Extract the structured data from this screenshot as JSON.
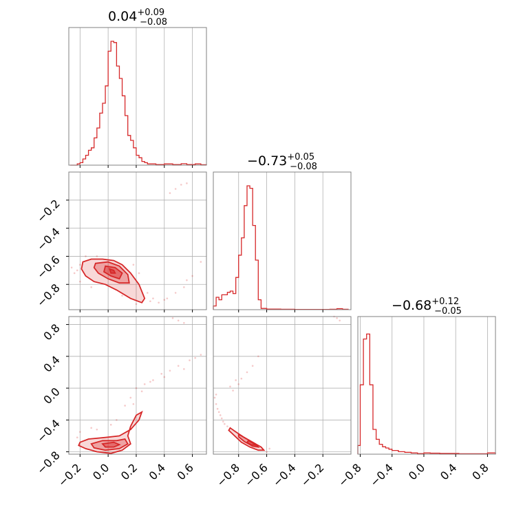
{
  "chart_data": {
    "type": "corner",
    "color": "#d62728",
    "parameters": [
      {
        "title": {
          "median": "0.04",
          "plus": "+0.09",
          "minus": "−0.08"
        },
        "range": [
          -0.28,
          0.7
        ],
        "ticks": [
          -0.2,
          0.0,
          0.2,
          0.4,
          0.6
        ],
        "tick_labels": [
          "−0.2",
          "0.0",
          "0.2",
          "0.4",
          "0.6"
        ],
        "histogram": [
          [
            -0.27,
            0.0
          ],
          [
            -0.22,
            0.01
          ],
          [
            -0.2,
            0.02
          ],
          [
            -0.18,
            0.05
          ],
          [
            -0.16,
            0.08
          ],
          [
            -0.14,
            0.12
          ],
          [
            -0.12,
            0.14
          ],
          [
            -0.1,
            0.22
          ],
          [
            -0.08,
            0.3
          ],
          [
            -0.06,
            0.42
          ],
          [
            -0.04,
            0.5
          ],
          [
            -0.02,
            0.64
          ],
          [
            0.0,
            0.92
          ],
          [
            0.02,
            1.0
          ],
          [
            0.04,
            0.99
          ],
          [
            0.06,
            0.8
          ],
          [
            0.08,
            0.7
          ],
          [
            0.1,
            0.56
          ],
          [
            0.12,
            0.4
          ],
          [
            0.14,
            0.24
          ],
          [
            0.16,
            0.2
          ],
          [
            0.18,
            0.14
          ],
          [
            0.2,
            0.08
          ],
          [
            0.22,
            0.06
          ],
          [
            0.24,
            0.03
          ],
          [
            0.26,
            0.02
          ],
          [
            0.28,
            0.01
          ],
          [
            0.34,
            0.005
          ],
          [
            0.4,
            0.01
          ],
          [
            0.46,
            0.005
          ],
          [
            0.52,
            0.012
          ],
          [
            0.56,
            0.005
          ],
          [
            0.62,
            0.01
          ],
          [
            0.66,
            0.003
          ],
          [
            0.7,
            0.0
          ]
        ]
      },
      {
        "title": {
          "median": "−0.73",
          "plus": "+0.05",
          "minus": "−0.08"
        },
        "range": [
          -0.98,
          0.0
        ],
        "ticks": [
          -0.8,
          -0.6,
          -0.4,
          -0.2
        ],
        "tick_labels": [
          "−0.8",
          "−0.6",
          "−0.4",
          "−0.2"
        ],
        "histogram": [
          [
            -0.98,
            0.03
          ],
          [
            -0.96,
            0.1
          ],
          [
            -0.94,
            0.08
          ],
          [
            -0.92,
            0.12
          ],
          [
            -0.9,
            0.12
          ],
          [
            -0.88,
            0.14
          ],
          [
            -0.86,
            0.15
          ],
          [
            -0.84,
            0.13
          ],
          [
            -0.82,
            0.26
          ],
          [
            -0.8,
            0.44
          ],
          [
            -0.78,
            0.58
          ],
          [
            -0.76,
            0.84
          ],
          [
            -0.74,
            1.0
          ],
          [
            -0.72,
            0.98
          ],
          [
            -0.7,
            0.68
          ],
          [
            -0.68,
            0.4
          ],
          [
            -0.66,
            0.08
          ],
          [
            -0.64,
            0.01
          ],
          [
            -0.6,
            0.005
          ],
          [
            -0.5,
            0.003
          ],
          [
            -0.4,
            0.002
          ],
          [
            -0.3,
            0.002
          ],
          [
            -0.15,
            0.003
          ],
          [
            -0.1,
            0.008
          ],
          [
            -0.06,
            0.003
          ],
          [
            -0.02,
            0.0
          ]
        ]
      },
      {
        "title": {
          "median": "−0.68",
          "plus": "+0.12",
          "minus": "−0.05"
        },
        "range": [
          -0.83,
          0.9
        ],
        "ticks": [
          -0.8,
          -0.4,
          0.0,
          0.4,
          0.8
        ],
        "tick_labels": [
          "−0.8",
          "−0.4",
          "0.0",
          "0.4",
          "0.8"
        ],
        "histogram": [
          [
            -0.83,
            0.07
          ],
          [
            -0.8,
            0.56
          ],
          [
            -0.76,
            0.93
          ],
          [
            -0.72,
            0.97
          ],
          [
            -0.68,
            0.56
          ],
          [
            -0.64,
            0.2
          ],
          [
            -0.6,
            0.12
          ],
          [
            -0.56,
            0.08
          ],
          [
            -0.52,
            0.06
          ],
          [
            -0.48,
            0.05
          ],
          [
            -0.44,
            0.04
          ],
          [
            -0.4,
            0.03
          ],
          [
            -0.32,
            0.02
          ],
          [
            -0.24,
            0.015
          ],
          [
            -0.16,
            0.01
          ],
          [
            -0.08,
            0.005
          ],
          [
            0.0,
            0.01
          ],
          [
            0.08,
            0.008
          ],
          [
            0.2,
            0.006
          ],
          [
            0.36,
            0.006
          ],
          [
            0.44,
            0.003
          ],
          [
            0.8,
            0.01
          ],
          [
            0.86,
            0.01
          ],
          [
            0.9,
            0.0
          ]
        ]
      }
    ],
    "pairs": [
      {
        "x_param": 0,
        "y_param": 1,
        "y_ticks": [
          -0.8,
          -0.6,
          -0.4,
          -0.2
        ],
        "y_tick_labels": [
          "−0.8",
          "−0.6",
          "−0.4",
          "−0.2"
        ],
        "contours": [
          [
            [
              -0.18,
              -0.64
            ],
            [
              -0.12,
              -0.62
            ],
            [
              -0.04,
              -0.62
            ],
            [
              0.04,
              -0.63
            ],
            [
              0.1,
              -0.66
            ],
            [
              0.16,
              -0.72
            ],
            [
              0.22,
              -0.8
            ],
            [
              0.26,
              -0.9
            ],
            [
              0.24,
              -0.93
            ],
            [
              0.16,
              -0.9
            ],
            [
              0.06,
              -0.84
            ],
            [
              -0.02,
              -0.8
            ],
            [
              -0.1,
              -0.78
            ],
            [
              -0.16,
              -0.74
            ],
            [
              -0.19,
              -0.69
            ]
          ],
          [
            [
              -0.09,
              -0.65
            ],
            [
              0.0,
              -0.64
            ],
            [
              0.08,
              -0.67
            ],
            [
              0.14,
              -0.73
            ],
            [
              0.15,
              -0.79
            ],
            [
              0.08,
              -0.79
            ],
            [
              0.0,
              -0.76
            ],
            [
              -0.07,
              -0.72
            ],
            [
              -0.1,
              -0.68
            ]
          ],
          [
            [
              -0.02,
              -0.67
            ],
            [
              0.05,
              -0.68
            ],
            [
              0.1,
              -0.72
            ],
            [
              0.08,
              -0.76
            ],
            [
              0.02,
              -0.74
            ],
            [
              -0.03,
              -0.71
            ]
          ],
          [
            [
              0.01,
              -0.69
            ],
            [
              0.04,
              -0.7
            ],
            [
              0.05,
              -0.72
            ],
            [
              0.02,
              -0.72
            ]
          ]
        ],
        "points": [
          [
            -0.22,
            -0.7
          ],
          [
            -0.2,
            -0.66
          ],
          [
            -0.24,
            -0.72
          ],
          [
            -0.16,
            -0.6
          ],
          [
            -0.08,
            -0.6
          ],
          [
            0.18,
            -0.66
          ],
          [
            0.22,
            -0.72
          ],
          [
            0.28,
            -0.86
          ],
          [
            0.3,
            -0.92
          ],
          [
            0.36,
            -0.93
          ],
          [
            0.42,
            -0.9
          ],
          [
            0.48,
            -0.86
          ],
          [
            0.54,
            -0.82
          ],
          [
            0.56,
            -0.77
          ],
          [
            0.6,
            -0.74
          ],
          [
            0.66,
            -0.64
          ],
          [
            0.48,
            -0.12
          ],
          [
            0.52,
            -0.09
          ],
          [
            0.44,
            -0.15
          ],
          [
            0.56,
            -0.08
          ],
          [
            -0.2,
            -0.78
          ],
          [
            -0.12,
            -0.82
          ],
          [
            0.1,
            -0.88
          ],
          [
            0.2,
            -0.94
          ],
          [
            -0.26,
            -0.68
          ],
          [
            0.32,
            -0.9
          ],
          [
            0.4,
            -0.91
          ]
        ]
      },
      {
        "x_param": 0,
        "y_param": 2,
        "y_ticks": [
          -0.8,
          -0.4,
          0.0,
          0.4,
          0.8
        ],
        "y_tick_labels": [
          "−0.8",
          "−0.4",
          "0.0",
          "0.4",
          "0.8"
        ],
        "contours": [
          [
            [
              -0.2,
              -0.68
            ],
            [
              -0.14,
              -0.64
            ],
            [
              -0.02,
              -0.62
            ],
            [
              0.08,
              -0.6
            ],
            [
              0.16,
              -0.52
            ],
            [
              0.22,
              -0.4
            ],
            [
              0.24,
              -0.3
            ],
            [
              0.2,
              -0.34
            ],
            [
              0.16,
              -0.48
            ],
            [
              0.14,
              -0.6
            ],
            [
              0.16,
              -0.7
            ],
            [
              0.1,
              -0.78
            ],
            [
              0.02,
              -0.82
            ],
            [
              -0.08,
              -0.8
            ],
            [
              -0.16,
              -0.76
            ],
            [
              -0.21,
              -0.72
            ]
          ],
          [
            [
              -0.12,
              -0.7
            ],
            [
              -0.04,
              -0.66
            ],
            [
              0.06,
              -0.66
            ],
            [
              0.12,
              -0.64
            ],
            [
              0.14,
              -0.7
            ],
            [
              0.08,
              -0.76
            ],
            [
              -0.02,
              -0.78
            ],
            [
              -0.1,
              -0.75
            ]
          ],
          [
            [
              -0.04,
              -0.7
            ],
            [
              0.04,
              -0.68
            ],
            [
              0.08,
              -0.71
            ],
            [
              0.04,
              -0.74
            ],
            [
              -0.02,
              -0.74
            ]
          ]
        ],
        "points": [
          [
            -0.22,
            -0.62
          ],
          [
            -0.2,
            -0.55
          ],
          [
            -0.08,
            -0.52
          ],
          [
            0.02,
            -0.46
          ],
          [
            0.06,
            -0.4
          ],
          [
            0.12,
            -0.22
          ],
          [
            0.16,
            -0.12
          ],
          [
            0.2,
            0.0
          ],
          [
            0.26,
            0.05
          ],
          [
            0.32,
            0.1
          ],
          [
            0.38,
            0.18
          ],
          [
            0.44,
            0.22
          ],
          [
            0.5,
            0.28
          ],
          [
            0.54,
            0.24
          ],
          [
            0.58,
            0.35
          ],
          [
            0.62,
            0.38
          ],
          [
            0.66,
            0.42
          ],
          [
            0.5,
            0.85
          ],
          [
            0.54,
            0.82
          ],
          [
            0.46,
            0.88
          ],
          [
            0.3,
            0.08
          ],
          [
            0.24,
            -0.04
          ],
          [
            -0.12,
            -0.5
          ],
          [
            0.18,
            -0.2
          ],
          [
            0.4,
            0.14
          ]
        ]
      },
      {
        "x_param": 1,
        "y_param": 2,
        "y_ticks": [
          -0.8,
          -0.4,
          0.0,
          0.4,
          0.8
        ],
        "y_tick_labels": [
          "−0.8",
          "−0.4",
          "0.0",
          "0.4",
          "0.8"
        ],
        "contours": [
          [
            [
              -0.86,
              -0.5
            ],
            [
              -0.82,
              -0.55
            ],
            [
              -0.76,
              -0.62
            ],
            [
              -0.7,
              -0.68
            ],
            [
              -0.64,
              -0.74
            ],
            [
              -0.62,
              -0.78
            ],
            [
              -0.66,
              -0.78
            ],
            [
              -0.72,
              -0.74
            ],
            [
              -0.78,
              -0.68
            ],
            [
              -0.84,
              -0.58
            ],
            [
              -0.87,
              -0.53
            ]
          ],
          [
            [
              -0.8,
              -0.58
            ],
            [
              -0.74,
              -0.64
            ],
            [
              -0.68,
              -0.7
            ],
            [
              -0.66,
              -0.74
            ],
            [
              -0.7,
              -0.73
            ],
            [
              -0.76,
              -0.67
            ],
            [
              -0.8,
              -0.61
            ]
          ],
          [
            [
              -0.73,
              -0.66
            ],
            [
              -0.69,
              -0.7
            ],
            [
              -0.67,
              -0.72
            ],
            [
              -0.71,
              -0.71
            ],
            [
              -0.74,
              -0.68
            ]
          ]
        ],
        "points": [
          [
            -0.97,
            -0.12
          ],
          [
            -0.96,
            -0.2
          ],
          [
            -0.95,
            -0.26
          ],
          [
            -0.94,
            -0.3
          ],
          [
            -0.93,
            -0.34
          ],
          [
            -0.92,
            -0.38
          ],
          [
            -0.91,
            -0.42
          ],
          [
            -0.9,
            -0.45
          ],
          [
            -0.88,
            -0.48
          ],
          [
            -0.84,
            -0.03
          ],
          [
            -0.8,
            0.05
          ],
          [
            -0.86,
            0.02
          ],
          [
            -0.78,
            0.12
          ],
          [
            -0.74,
            0.2
          ],
          [
            -0.7,
            0.28
          ],
          [
            -0.66,
            0.4
          ],
          [
            -0.82,
            0.1
          ],
          [
            -0.1,
            0.88
          ],
          [
            -0.08,
            0.85
          ],
          [
            -0.12,
            0.9
          ],
          [
            -0.96,
            -0.08
          ],
          [
            -0.6,
            -0.8
          ],
          [
            -0.58,
            -0.76
          ]
        ]
      }
    ]
  }
}
